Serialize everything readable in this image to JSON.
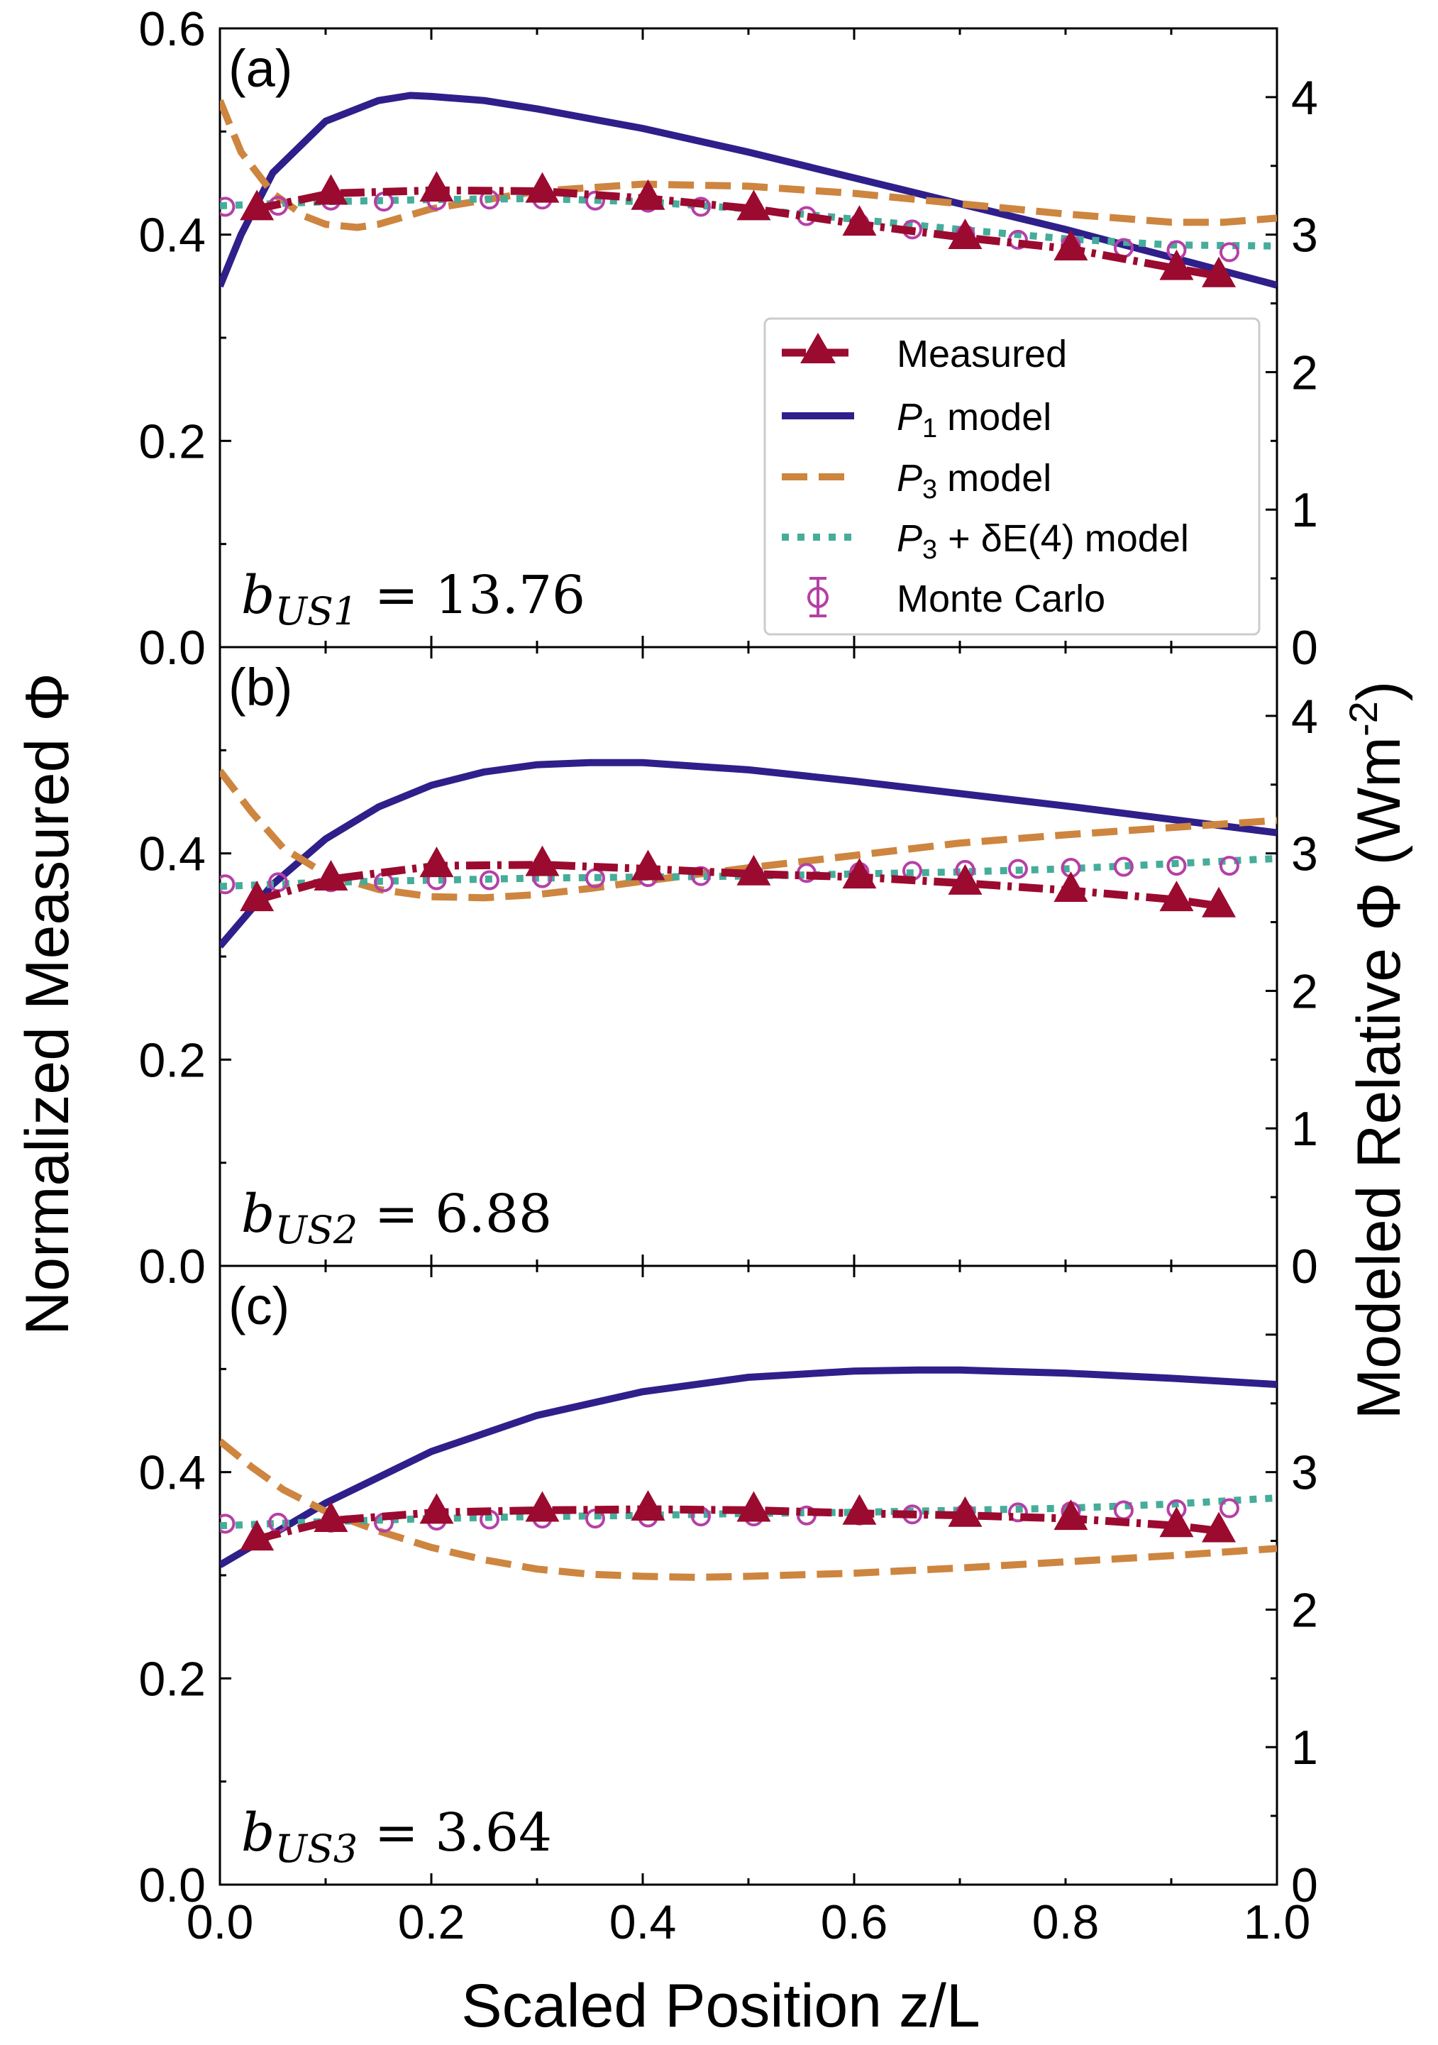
{
  "chart_data": [
    {
      "panel": "(a)",
      "type": "line",
      "annotation": {
        "prefix": "b",
        "subscript": "US1",
        "text": " = 13.76"
      },
      "xlim": [
        0.0,
        1.0
      ],
      "ylim_left": [
        0.0,
        0.6
      ],
      "ylim_right": [
        0.0,
        4.5
      ],
      "left_ticks": [
        0.0,
        0.2,
        0.4,
        0.6
      ],
      "right_ticks": [
        0,
        1,
        2,
        3,
        4
      ],
      "measured": {
        "x": [
          0.035,
          0.105,
          0.205,
          0.305,
          0.405,
          0.505,
          0.605,
          0.705,
          0.805,
          0.905,
          0.945
        ],
        "y": [
          0.425,
          0.44,
          0.443,
          0.442,
          0.435,
          0.425,
          0.41,
          0.397,
          0.386,
          0.367,
          0.36
        ]
      },
      "p1": {
        "x": [
          0.0,
          0.02,
          0.05,
          0.1,
          0.15,
          0.18,
          0.2,
          0.25,
          0.3,
          0.4,
          0.5,
          0.6,
          0.7,
          0.8,
          0.9,
          1.0
        ],
        "y": [
          0.35,
          0.4,
          0.46,
          0.51,
          0.53,
          0.535,
          0.534,
          0.53,
          0.522,
          0.503,
          0.48,
          0.455,
          0.43,
          0.405,
          0.378,
          0.351
        ]
      },
      "p3": {
        "x": [
          0.0,
          0.02,
          0.05,
          0.08,
          0.1,
          0.13,
          0.15,
          0.2,
          0.3,
          0.4,
          0.5,
          0.6,
          0.7,
          0.8,
          0.9,
          0.95,
          1.0
        ],
        "y": [
          0.53,
          0.48,
          0.44,
          0.418,
          0.41,
          0.407,
          0.41,
          0.425,
          0.442,
          0.449,
          0.447,
          0.44,
          0.43,
          0.42,
          0.412,
          0.412,
          0.416
        ]
      },
      "p3de4": {
        "x": [
          0.0,
          0.05,
          0.1,
          0.2,
          0.3,
          0.4,
          0.5,
          0.6,
          0.7,
          0.8,
          0.9,
          1.0
        ],
        "y": [
          0.428,
          0.43,
          0.432,
          0.434,
          0.435,
          0.432,
          0.425,
          0.415,
          0.405,
          0.396,
          0.39,
          0.389
        ]
      },
      "monte_carlo": {
        "x": [
          0.005,
          0.055,
          0.105,
          0.155,
          0.205,
          0.255,
          0.305,
          0.355,
          0.405,
          0.455,
          0.505,
          0.555,
          0.605,
          0.655,
          0.705,
          0.755,
          0.805,
          0.855,
          0.905,
          0.955
        ],
        "y": [
          0.427,
          0.428,
          0.433,
          0.432,
          0.433,
          0.434,
          0.434,
          0.433,
          0.431,
          0.427,
          0.424,
          0.418,
          0.411,
          0.405,
          0.4,
          0.395,
          0.39,
          0.387,
          0.385,
          0.383
        ]
      }
    },
    {
      "panel": "(b)",
      "type": "line",
      "annotation": {
        "prefix": "b",
        "subscript": "US2",
        "text": " = 6.88"
      },
      "xlim": [
        0.0,
        1.0
      ],
      "ylim_left": [
        0.0,
        0.6
      ],
      "ylim_right": [
        0.0,
        4.5
      ],
      "left_ticks": [
        0.0,
        0.2,
        0.4
      ],
      "right_ticks": [
        0,
        1,
        2,
        3,
        4
      ],
      "measured": {
        "x": [
          0.035,
          0.105,
          0.205,
          0.305,
          0.405,
          0.505,
          0.605,
          0.705,
          0.805,
          0.905,
          0.945
        ],
        "y": [
          0.355,
          0.375,
          0.388,
          0.389,
          0.385,
          0.38,
          0.377,
          0.371,
          0.364,
          0.355,
          0.349
        ]
      },
      "p1": {
        "x": [
          0.0,
          0.05,
          0.1,
          0.15,
          0.2,
          0.25,
          0.3,
          0.35,
          0.4,
          0.5,
          0.6,
          0.7,
          0.8,
          0.9,
          1.0
        ],
        "y": [
          0.31,
          0.37,
          0.414,
          0.445,
          0.466,
          0.479,
          0.486,
          0.488,
          0.488,
          0.481,
          0.47,
          0.458,
          0.446,
          0.433,
          0.42
        ]
      },
      "p3": {
        "x": [
          0.0,
          0.03,
          0.06,
          0.1,
          0.15,
          0.2,
          0.25,
          0.3,
          0.35,
          0.4,
          0.5,
          0.6,
          0.7,
          0.8,
          0.9,
          1.0
        ],
        "y": [
          0.48,
          0.44,
          0.405,
          0.38,
          0.365,
          0.358,
          0.357,
          0.36,
          0.366,
          0.373,
          0.386,
          0.398,
          0.41,
          0.418,
          0.425,
          0.432
        ]
      },
      "p3de4": {
        "x": [
          0.0,
          0.1,
          0.2,
          0.3,
          0.4,
          0.5,
          0.6,
          0.7,
          0.8,
          0.9,
          1.0
        ],
        "y": [
          0.368,
          0.372,
          0.374,
          0.376,
          0.377,
          0.378,
          0.38,
          0.382,
          0.385,
          0.39,
          0.395
        ]
      },
      "monte_carlo": {
        "x": [
          0.005,
          0.055,
          0.105,
          0.155,
          0.205,
          0.255,
          0.305,
          0.355,
          0.405,
          0.455,
          0.505,
          0.555,
          0.605,
          0.655,
          0.705,
          0.755,
          0.805,
          0.855,
          0.905,
          0.955
        ],
        "y": [
          0.37,
          0.372,
          0.372,
          0.372,
          0.374,
          0.374,
          0.376,
          0.376,
          0.377,
          0.378,
          0.38,
          0.381,
          0.382,
          0.383,
          0.384,
          0.385,
          0.386,
          0.387,
          0.388,
          0.388
        ]
      }
    },
    {
      "panel": "(c)",
      "type": "line",
      "annotation": {
        "prefix": "b",
        "subscript": "US3",
        "text": " = 3.64"
      },
      "xlim": [
        0.0,
        1.0
      ],
      "ylim_left": [
        0.0,
        0.6
      ],
      "ylim_right": [
        0.0,
        4.5
      ],
      "left_ticks": [
        0.0,
        0.2,
        0.4
      ],
      "right_ticks": [
        0,
        1,
        2,
        3
      ],
      "measured": {
        "x": [
          0.035,
          0.105,
          0.205,
          0.305,
          0.405,
          0.505,
          0.605,
          0.705,
          0.805,
          0.905,
          0.945
        ],
        "y": [
          0.335,
          0.353,
          0.361,
          0.363,
          0.364,
          0.363,
          0.36,
          0.358,
          0.355,
          0.348,
          0.343
        ]
      },
      "p1": {
        "x": [
          0.0,
          0.05,
          0.1,
          0.2,
          0.3,
          0.4,
          0.5,
          0.6,
          0.66,
          0.7,
          0.8,
          0.9,
          1.0
        ],
        "y": [
          0.31,
          0.34,
          0.37,
          0.42,
          0.455,
          0.478,
          0.492,
          0.498,
          0.499,
          0.499,
          0.496,
          0.491,
          0.485
        ]
      },
      "p3": {
        "x": [
          0.0,
          0.03,
          0.06,
          0.1,
          0.15,
          0.2,
          0.25,
          0.3,
          0.35,
          0.4,
          0.45,
          0.5,
          0.6,
          0.7,
          0.8,
          0.9,
          1.0
        ],
        "y": [
          0.43,
          0.405,
          0.383,
          0.362,
          0.343,
          0.327,
          0.315,
          0.306,
          0.301,
          0.299,
          0.298,
          0.299,
          0.302,
          0.307,
          0.313,
          0.319,
          0.326
        ]
      },
      "p3de4": {
        "x": [
          0.0,
          0.1,
          0.2,
          0.3,
          0.4,
          0.5,
          0.6,
          0.7,
          0.8,
          0.9,
          1.0
        ],
        "y": [
          0.348,
          0.352,
          0.355,
          0.357,
          0.358,
          0.36,
          0.361,
          0.363,
          0.365,
          0.369,
          0.375
        ]
      },
      "monte_carlo": {
        "x": [
          0.005,
          0.055,
          0.105,
          0.155,
          0.205,
          0.255,
          0.305,
          0.355,
          0.405,
          0.455,
          0.505,
          0.555,
          0.605,
          0.655,
          0.705,
          0.755,
          0.805,
          0.855,
          0.905,
          0.955
        ],
        "y": [
          0.35,
          0.351,
          0.351,
          0.351,
          0.353,
          0.354,
          0.355,
          0.355,
          0.356,
          0.357,
          0.357,
          0.358,
          0.358,
          0.359,
          0.36,
          0.361,
          0.362,
          0.363,
          0.364,
          0.365
        ]
      }
    }
  ],
  "axes": {
    "xlabel": "Scaled Position z/L",
    "ylabel_left": "Normalized Measured Φ",
    "ylabel_right": "Modeled Relative Φ (Wm",
    "ylabel_right_superscript": "-2",
    "ylabel_right_close": ")",
    "x_ticks": [
      "0.0",
      "0.2",
      "0.4",
      "0.6",
      "0.8",
      "1.0"
    ]
  },
  "legend": {
    "measured": "Measured",
    "p1_label": "model",
    "p1_sym": "P",
    "p1_sub": "1",
    "p3_label": "model",
    "p3_sym": "P",
    "p3_sub": "3",
    "p3de4_label": "model",
    "p3de4_sym": "P",
    "p3de4_sub": "3",
    "p3de4_plus": " + δE(4)",
    "monte_carlo": "Monte Carlo"
  },
  "colors": {
    "measured": "#9b0a2f",
    "p1": "#2e1f8a",
    "p3": "#cd853f",
    "p3de4": "#45ad9a",
    "monte_carlo": "#b540a6"
  }
}
